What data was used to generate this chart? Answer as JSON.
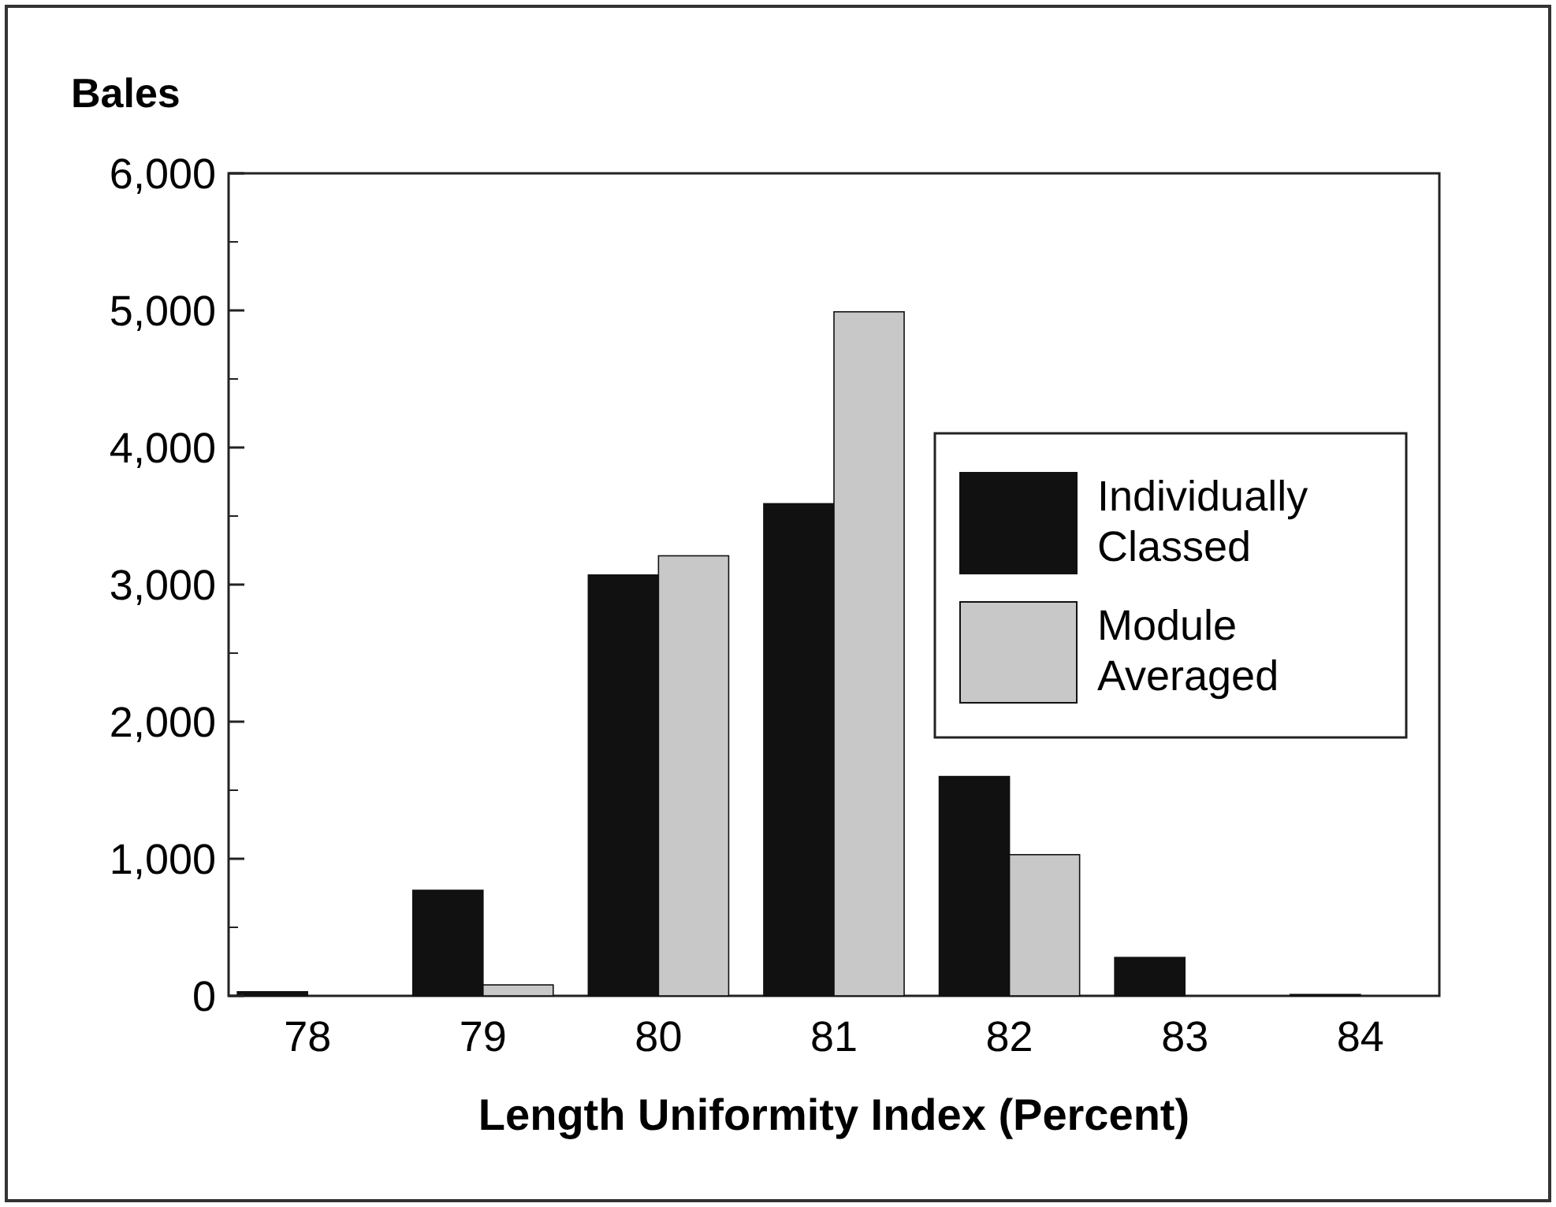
{
  "chart_data": {
    "type": "bar",
    "ylabel": "Bales",
    "xlabel": "Length Uniformity Index (Percent)",
    "categories": [
      "78",
      "79",
      "80",
      "81",
      "82",
      "83",
      "84"
    ],
    "series": [
      {
        "name": "Individually Classed",
        "color": "#111111",
        "values": [
          30,
          770,
          3070,
          3590,
          1600,
          280,
          10
        ]
      },
      {
        "name": "Module Averaged",
        "color": "#c8c8c8",
        "values": [
          0,
          80,
          3210,
          4990,
          1030,
          0,
          0
        ]
      }
    ],
    "ylim": [
      0,
      6000
    ],
    "yticks": [
      {
        "value": 0,
        "label": "0"
      },
      {
        "value": 1000,
        "label": "1,000"
      },
      {
        "value": 2000,
        "label": "2,000"
      },
      {
        "value": 3000,
        "label": "3,000"
      },
      {
        "value": 4000,
        "label": "4,000"
      },
      {
        "value": 5000,
        "label": "5,000"
      },
      {
        "value": 6000,
        "label": "6,000"
      }
    ],
    "grid": false,
    "legend": "right"
  }
}
